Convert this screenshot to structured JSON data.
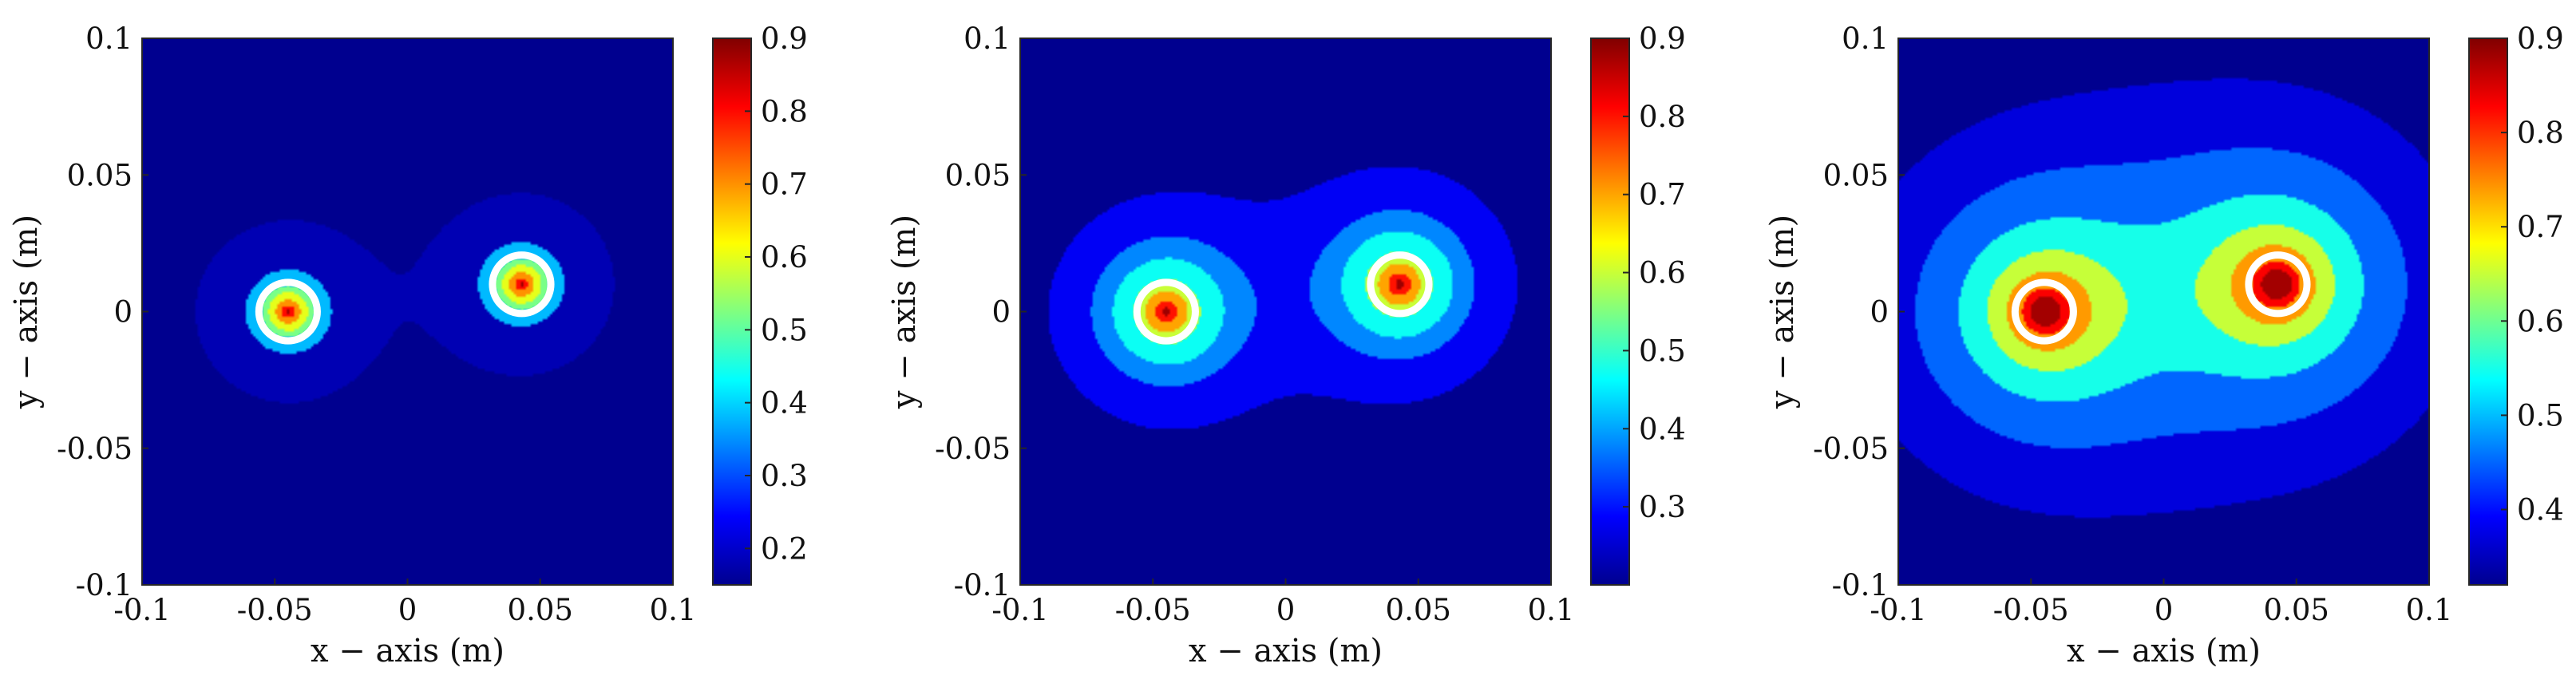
{
  "chart_data": [
    {
      "type": "heatmap",
      "title": "",
      "xlabel": "x − axis (m)",
      "ylabel": "y − axis (m)",
      "xlim": [
        -0.1,
        0.1
      ],
      "ylim": [
        -0.1,
        0.1
      ],
      "x_ticks": [
        "-0.1",
        "-0.05",
        "0",
        "0.05",
        "0.1"
      ],
      "y_ticks": [
        "-0.1",
        "-0.05",
        "0",
        "0.05",
        "0.1"
      ],
      "colorbar_range": [
        0.15,
        0.9
      ],
      "colorbar_ticks": [
        "0.2",
        "0.3",
        "0.4",
        "0.5",
        "0.6",
        "0.7",
        "0.8",
        "0.9"
      ],
      "contour_levels": [
        0.18,
        0.38,
        0.52,
        0.6,
        0.7,
        0.8,
        0.88
      ],
      "sources": [
        {
          "x": -0.045,
          "y": 0.0,
          "r": 0.011
        },
        {
          "x": 0.043,
          "y": 0.01,
          "r": 0.011
        }
      ],
      "field": {
        "peak_values": [
          1.0,
          1.0
        ],
        "background": 0.1,
        "decay": 0.015
      }
    },
    {
      "type": "heatmap",
      "title": "",
      "xlabel": "x − axis (m)",
      "ylabel": "y − axis (m)",
      "xlim": [
        -0.1,
        0.1
      ],
      "ylim": [
        -0.1,
        0.1
      ],
      "x_ticks": [
        "-0.1",
        "-0.05",
        "0",
        "0.05",
        "0.1"
      ],
      "y_ticks": [
        "-0.1",
        "-0.05",
        "0",
        "0.05",
        "0.1"
      ],
      "colorbar_range": [
        0.2,
        0.9
      ],
      "colorbar_ticks": [
        "0.3",
        "0.4",
        "0.5",
        "0.6",
        "0.7",
        "0.8",
        "0.9"
      ],
      "contour_levels": [
        0.28,
        0.38,
        0.47,
        0.6,
        0.7,
        0.8,
        0.88
      ],
      "sources": [
        {
          "x": -0.045,
          "y": 0.0,
          "r": 0.011
        },
        {
          "x": 0.043,
          "y": 0.01,
          "r": 0.011
        }
      ],
      "field": {
        "peak_values": [
          1.0,
          1.0
        ],
        "background": 0.2,
        "decay": 0.02
      }
    },
    {
      "type": "heatmap",
      "title": "",
      "xlabel": "x − axis (m)",
      "ylabel": "y − axis (m)",
      "xlim": [
        -0.1,
        0.1
      ],
      "ylim": [
        -0.1,
        0.1
      ],
      "x_ticks": [
        "-0.1",
        "-0.05",
        "0",
        "0.05",
        "0.1"
      ],
      "y_ticks": [
        "-0.1",
        "-0.05",
        "0",
        "0.05",
        "0.1"
      ],
      "colorbar_range": [
        0.32,
        0.9
      ],
      "colorbar_ticks": [
        "0.4",
        "0.5",
        "0.6",
        "0.7",
        "0.8",
        "0.9"
      ],
      "contour_levels": [
        0.37,
        0.45,
        0.55,
        0.65,
        0.74,
        0.83,
        0.88
      ],
      "sources": [
        {
          "x": -0.045,
          "y": 0.0,
          "r": 0.011
        },
        {
          "x": 0.043,
          "y": 0.01,
          "r": 0.011
        }
      ],
      "field": {
        "peak_values": [
          1.0,
          1.0
        ],
        "background": 0.3,
        "decay": 0.032
      }
    }
  ],
  "colors": {
    "jet": [
      "#00008f",
      "#0000ff",
      "#0080ff",
      "#00ffff",
      "#80ff80",
      "#ffff00",
      "#ff8000",
      "#ff0000",
      "#800000"
    ],
    "source_ring": "#ffffff",
    "axis": "#262626"
  }
}
